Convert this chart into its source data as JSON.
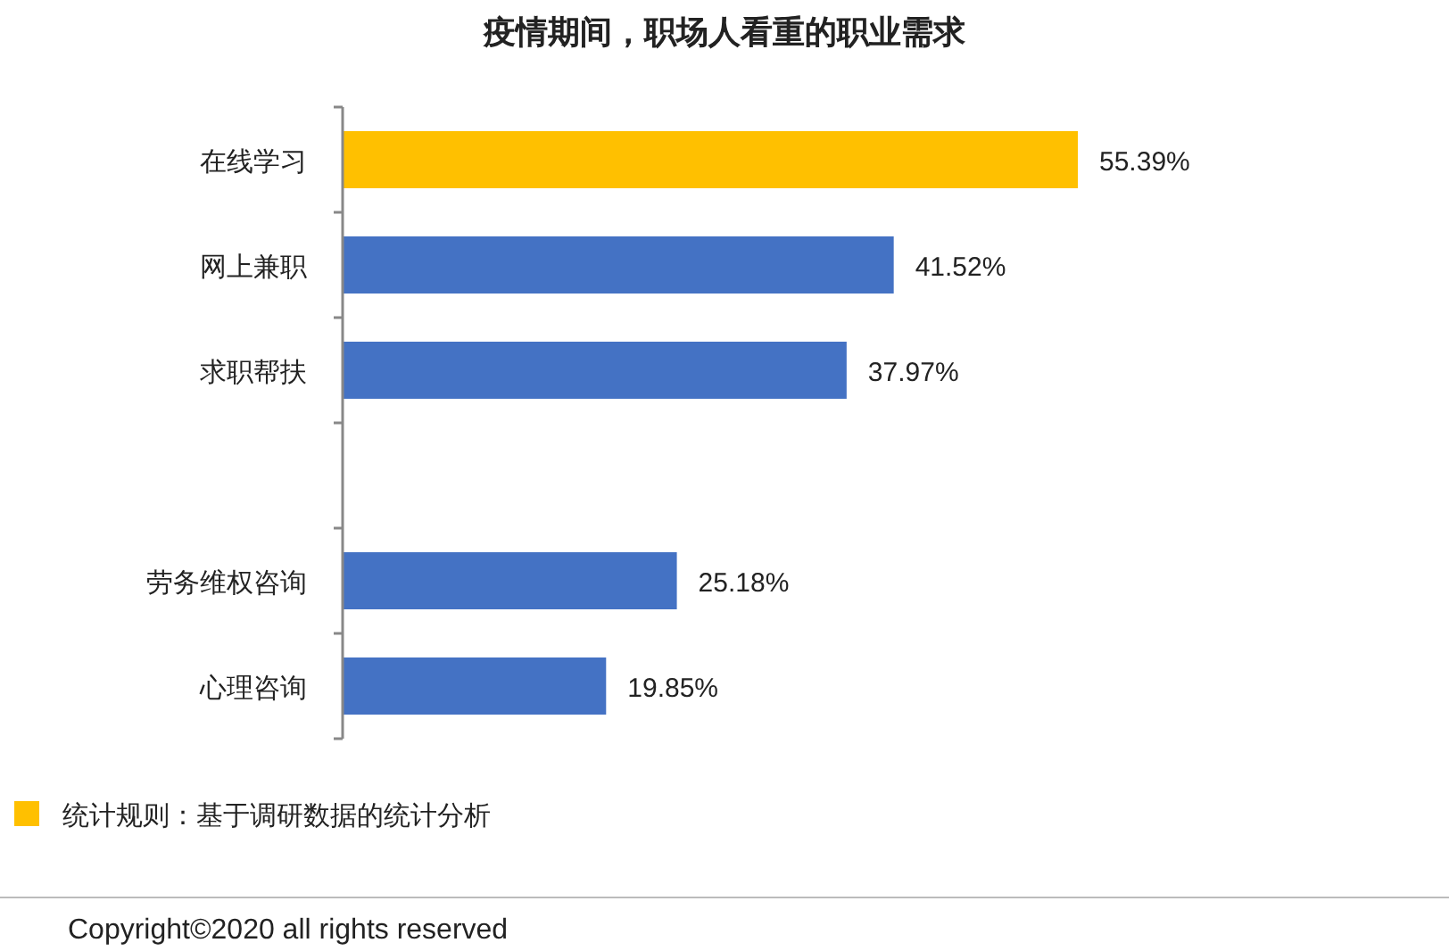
{
  "chart_data": {
    "type": "bar",
    "orientation": "horizontal",
    "relative": false,
    "title": "疫情期间，职场人看重的职业需求",
    "categories": [
      "在线学习",
      "网上兼职",
      "求职帮扶",
      null,
      "劳务维权咨询",
      "心理咨询"
    ],
    "values": [
      55.39,
      41.52,
      37.97,
      null,
      25.18,
      19.85
    ],
    "colors": [
      "#ffc000",
      "#4472c4",
      "#4472c4",
      null,
      "#4472c4",
      "#4472c4"
    ],
    "value_labels": [
      "55.39%",
      "41.52%",
      "37.97%",
      null,
      "25.18%",
      "19.85%"
    ],
    "annotations": [
      "统计规则：基于调研数据的统计分析",
      "Copyright©2020 all rights reserved"
    ]
  }
}
